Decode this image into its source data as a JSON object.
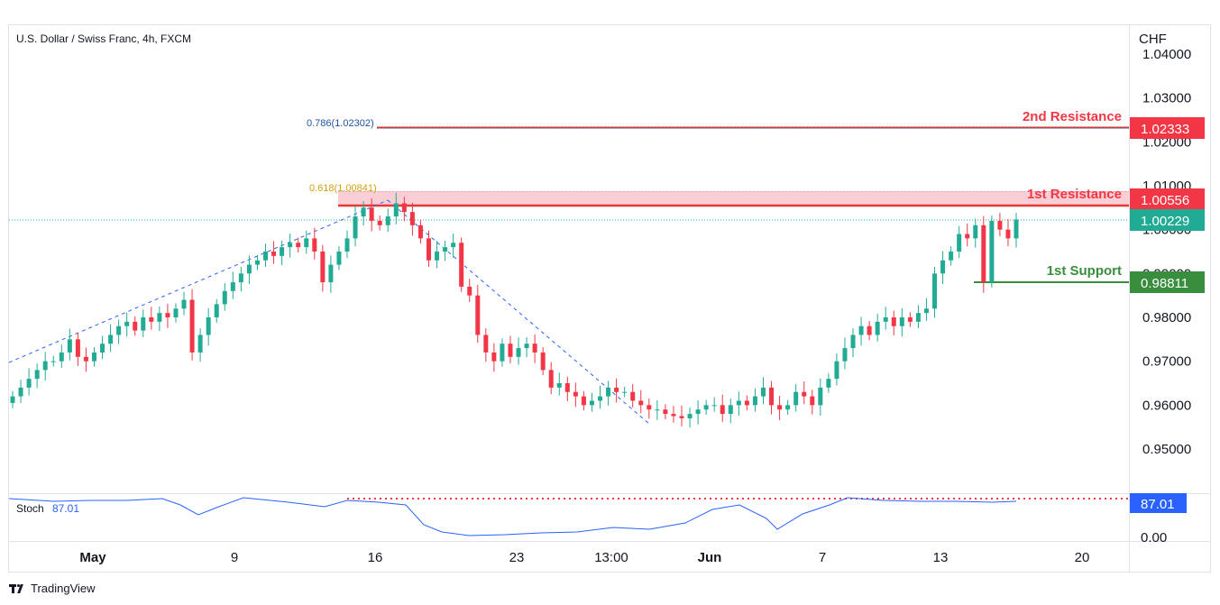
{
  "header": {
    "symbol_title": "U.S. Dollar / Swiss Franc, 4h, FXCM"
  },
  "price_axis": {
    "currency": "CHF",
    "ticks": [
      "1.04000",
      "1.03000",
      "1.02000",
      "1.01000",
      "1.00000",
      "0.99000",
      "0.98000",
      "0.97000",
      "0.96000",
      "0.95000"
    ]
  },
  "time_axis": {
    "labels": [
      "May",
      "9",
      "16",
      "23",
      "13:00",
      "Jun",
      "7",
      "13",
      "20"
    ],
    "bold": [
      "May",
      "Jun"
    ]
  },
  "levels": {
    "second_resistance": {
      "label": "2nd Resistance",
      "value": "1.02333",
      "color": "#f23645"
    },
    "first_resistance": {
      "label": "1st Resistance",
      "value": "1.00556",
      "color": "#f23645"
    },
    "last_price": {
      "value": "1.00229",
      "color": "#22ab94"
    },
    "first_support": {
      "label": "1st Support",
      "value": "0.98811",
      "color": "#388e3c"
    }
  },
  "fibonacci": {
    "fib_786": {
      "label": "0.786(1.02302)",
      "color": "#1e53a5"
    },
    "fib_618": {
      "label": "0.618(1.00841)",
      "color": "#d4a10f"
    }
  },
  "stochastic": {
    "name": "Stoch",
    "value": "87.01",
    "axis_zero": "0.00",
    "color": "#2962ff"
  },
  "footer": {
    "brand": "TradingView"
  },
  "chart_data": {
    "type": "candlestick",
    "title": "U.S. Dollar / Swiss Franc, 4h, FXCM",
    "ylabel": "CHF",
    "ylim": [
      0.943,
      1.044
    ],
    "x_labels": [
      "May",
      "9",
      "16",
      "23",
      "13:00",
      "Jun",
      "7",
      "13",
      "20"
    ],
    "close_path": [
      0.962,
      0.964,
      0.966,
      0.968,
      0.97,
      0.97,
      0.972,
      0.975,
      0.971,
      0.97,
      0.972,
      0.974,
      0.976,
      0.978,
      0.979,
      0.977,
      0.98,
      0.979,
      0.981,
      0.98,
      0.982,
      0.984,
      0.972,
      0.976,
      0.98,
      0.983,
      0.986,
      0.988,
      0.99,
      0.992,
      0.993,
      0.995,
      0.994,
      0.996,
      0.997,
      0.996,
      0.998,
      0.995,
      0.988,
      0.992,
      0.995,
      0.998,
      1.003,
      1.005,
      1.002,
      1.001,
      1.003,
      1.006,
      1.004,
      1.001,
      0.998,
      0.993,
      0.995,
      0.996,
      0.997,
      0.987,
      0.985,
      0.976,
      0.972,
      0.97,
      0.974,
      0.971,
      0.973,
      0.974,
      0.972,
      0.968,
      0.964,
      0.965,
      0.963,
      0.962,
      0.96,
      0.961,
      0.962,
      0.964,
      0.963,
      0.963,
      0.961,
      0.96,
      0.959,
      0.959,
      0.958,
      0.9575,
      0.957,
      0.958,
      0.959,
      0.96,
      0.96,
      0.958,
      0.96,
      0.961,
      0.96,
      0.962,
      0.964,
      0.96,
      0.959,
      0.96,
      0.963,
      0.962,
      0.96,
      0.964,
      0.966,
      0.97,
      0.973,
      0.976,
      0.978,
      0.976,
      0.979,
      0.98,
      0.978,
      0.98,
      0.979,
      0.981,
      0.982,
      0.99,
      0.993,
      0.995,
      0.999,
      0.998,
      1.001,
      0.988,
      1.002,
      1.0,
      0.998,
      1.0023
    ],
    "horizontal_levels": [
      {
        "name": "2nd Resistance",
        "value": 1.02333
      },
      {
        "name": "1st Resistance",
        "value": 1.00556
      },
      {
        "name": "1st Support",
        "value": 0.98811
      },
      {
        "name": "Last price",
        "value": 1.00229
      }
    ],
    "fibonacci_levels": [
      {
        "ratio": 0.786,
        "value": 1.02302
      },
      {
        "ratio": 0.618,
        "value": 1.00841
      }
    ],
    "stochastic": {
      "last": 87.01
    }
  }
}
